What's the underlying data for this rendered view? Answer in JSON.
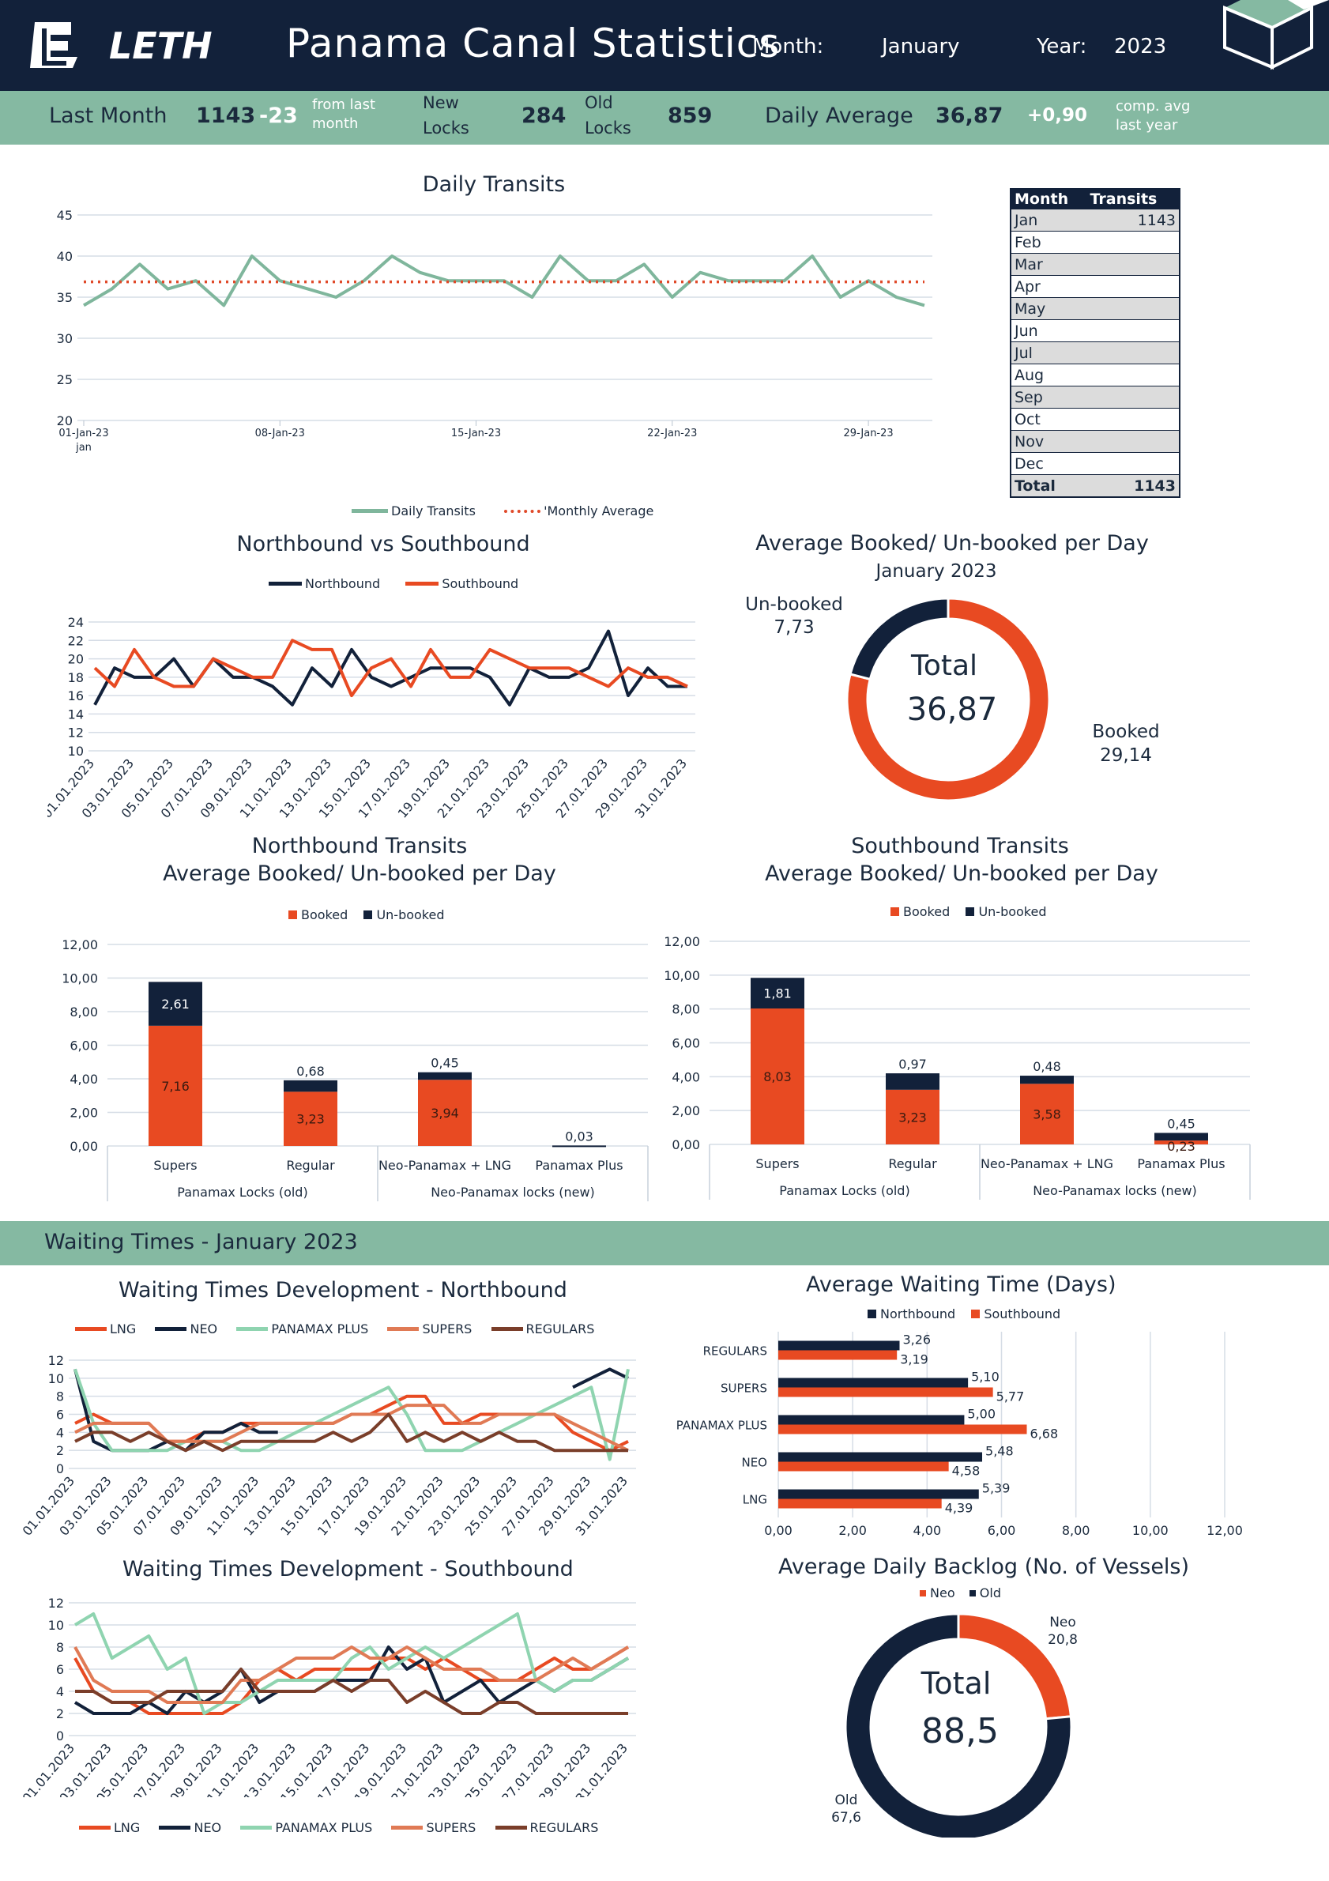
{
  "header": {
    "logo_text": "LETH",
    "title": "Panama Canal Statistics",
    "month_label": "Month:",
    "month_value": "January",
    "year_label": "Year:",
    "year_value": "2023"
  },
  "kpi": {
    "last_month_label": "Last Month",
    "last_month_value": "1143",
    "last_month_delta": "-23",
    "from_last_1": "from last",
    "from_last_2": "month",
    "new_locks_1": "New",
    "new_locks_2": "Locks",
    "new_locks_value": "284",
    "old_locks_1": "Old",
    "old_locks_2": "Locks",
    "old_locks_value": "859",
    "daily_avg_label": "Daily Average",
    "daily_avg_value": "36,87",
    "daily_avg_delta": "+0,90",
    "comp_1": "comp. avg",
    "comp_2": "last year"
  },
  "colors": {
    "navy": "#12213a",
    "orange": "#e84a22",
    "green": "#85b9a2",
    "mint": "#8fd4b0",
    "salmon": "#e07a55",
    "brown": "#7a3e2a",
    "teal_line": "#7fb69c",
    "avg_line": "#e04a2a"
  },
  "month_table": {
    "headers": [
      "Month",
      "Transits"
    ],
    "rows": [
      [
        "Jan",
        "1143"
      ],
      [
        "Feb",
        ""
      ],
      [
        "Mar",
        ""
      ],
      [
        "Apr",
        ""
      ],
      [
        "May",
        ""
      ],
      [
        "Jun",
        ""
      ],
      [
        "Jul",
        ""
      ],
      [
        "Aug",
        ""
      ],
      [
        "Sep",
        ""
      ],
      [
        "Oct",
        ""
      ],
      [
        "Nov",
        ""
      ],
      [
        "Dec",
        ""
      ]
    ],
    "total": [
      "Total",
      "1143"
    ]
  },
  "wait_section_title": "Waiting Times -   January 2023",
  "donut1": {
    "title": "Average Booked/ Un-booked per Day",
    "subtitle": "January 2023",
    "total_label": "Total",
    "total_value": "36,87",
    "unbooked_label": "Un-booked",
    "unbooked_value": "7,73",
    "booked_label": "Booked",
    "booked_value": "29,14"
  },
  "donut2": {
    "title": "Average Daily Backlog (No. of Vessels)",
    "total_label": "Total",
    "total_value": "88,5",
    "neo_label": "Neo",
    "neo_value": "20,8",
    "old_label": "Old",
    "old_value": "67,6",
    "legend_neo": "Neo",
    "legend_old": "Old"
  },
  "chart_data": [
    {
      "type": "line",
      "title": "Daily Transits",
      "x": [
        "01-Jan-23",
        "02-Jan-23",
        "03-Jan-23",
        "04-Jan-23",
        "05-Jan-23",
        "06-Jan-23",
        "07-Jan-23",
        "08-Jan-23",
        "09-Jan-23",
        "10-Jan-23",
        "11-Jan-23",
        "12-Jan-23",
        "13-Jan-23",
        "14-Jan-23",
        "15-Jan-23",
        "16-Jan-23",
        "17-Jan-23",
        "18-Jan-23",
        "19-Jan-23",
        "20-Jan-23",
        "21-Jan-23",
        "22-Jan-23",
        "23-Jan-23",
        "24-Jan-23",
        "25-Jan-23",
        "26-Jan-23",
        "27-Jan-23",
        "28-Jan-23",
        "29-Jan-23",
        "30-Jan-23",
        "31-Jan-23"
      ],
      "x_ticks": [
        "01-Jan-23",
        "08-Jan-23",
        "15-Jan-23",
        "22-Jan-23",
        "29-Jan-23"
      ],
      "x_sub": "jan",
      "series": [
        {
          "name": "Daily Transits",
          "values": [
            34,
            36,
            39,
            36,
            37,
            34,
            40,
            37,
            36,
            35,
            37,
            40,
            38,
            37,
            37,
            37,
            35,
            40,
            37,
            37,
            39,
            35,
            38,
            37,
            37,
            37,
            40,
            35,
            37,
            35,
            34
          ]
        },
        {
          "name": "'Monthly Average",
          "values": [
            36.87,
            36.87,
            36.87,
            36.87,
            36.87,
            36.87,
            36.87,
            36.87,
            36.87,
            36.87,
            36.87,
            36.87,
            36.87,
            36.87,
            36.87,
            36.87,
            36.87,
            36.87,
            36.87,
            36.87,
            36.87,
            36.87,
            36.87,
            36.87,
            36.87,
            36.87,
            36.87,
            36.87,
            36.87,
            36.87,
            36.87
          ]
        }
      ],
      "ylim": [
        20,
        45
      ],
      "yticks": [
        20,
        25,
        30,
        35,
        40,
        45
      ]
    },
    {
      "type": "line",
      "title": "Northbound vs Southbound",
      "x": [
        "01.01.2023",
        "02.01.2023",
        "03.01.2023",
        "04.01.2023",
        "05.01.2023",
        "06.01.2023",
        "07.01.2023",
        "08.01.2023",
        "09.01.2023",
        "10.01.2023",
        "11.01.2023",
        "12.01.2023",
        "13.01.2023",
        "14.01.2023",
        "15.01.2023",
        "16.01.2023",
        "17.01.2023",
        "18.01.2023",
        "19.01.2023",
        "20.01.2023",
        "21.01.2023",
        "22.01.2023",
        "23.01.2023",
        "24.01.2023",
        "25.01.2023",
        "26.01.2023",
        "27.01.2023",
        "28.01.2023",
        "29.01.2023",
        "30.01.2023",
        "31.01.2023"
      ],
      "x_ticks": [
        "01.01.2023",
        "03.01.2023",
        "05.01.2023",
        "07.01.2023",
        "09.01.2023",
        "11.01.2023",
        "13.01.2023",
        "15.01.2023",
        "17.01.2023",
        "19.01.2023",
        "21.01.2023",
        "23.01.2023",
        "25.01.2023",
        "27.01.2023",
        "29.01.2023",
        "31.01.2023"
      ],
      "series": [
        {
          "name": "Northbound",
          "values": [
            15,
            19,
            18,
            18,
            20,
            17,
            20,
            18,
            18,
            17,
            15,
            19,
            17,
            21,
            18,
            17,
            18,
            19,
            19,
            19,
            18,
            15,
            19,
            18,
            18,
            19,
            23,
            16,
            19,
            17,
            17
          ]
        },
        {
          "name": "Southbound",
          "values": [
            19,
            17,
            21,
            18,
            17,
            17,
            20,
            19,
            18,
            18,
            22,
            21,
            21,
            16,
            19,
            20,
            17,
            21,
            18,
            18,
            21,
            20,
            19,
            19,
            19,
            18,
            17,
            19,
            18,
            18,
            17
          ]
        }
      ],
      "ylim": [
        10,
        24
      ],
      "yticks": [
        10,
        12,
        14,
        16,
        18,
        20,
        22,
        24
      ]
    },
    {
      "type": "bar",
      "title": "Northbound Transits",
      "subtitle": "Average Booked/ Un-booked per Day",
      "stacked": true,
      "categories": [
        "Supers",
        "Regular",
        "Neo-Panamax + LNG",
        "Panamax Plus"
      ],
      "groups": [
        "Panamax Locks (old)",
        "Neo-Panamax locks (new)"
      ],
      "series": [
        {
          "name": "Booked",
          "values": [
            7.16,
            3.23,
            3.94,
            0
          ]
        },
        {
          "name": "Un-booked",
          "values": [
            2.61,
            0.68,
            0.45,
            0.03
          ]
        }
      ],
      "labels": {
        "booked": [
          "7,16",
          "3,23",
          "3,94",
          ""
        ],
        "unbooked": [
          "2,61",
          "0,68",
          "0,45",
          "0,03"
        ]
      },
      "ylim": [
        0,
        12
      ],
      "yticks": [
        "0,00",
        "2,00",
        "4,00",
        "6,00",
        "8,00",
        "10,00",
        "12,00"
      ]
    },
    {
      "type": "bar",
      "title": "Southbound Transits",
      "subtitle": "Average Booked/ Un-booked per Day",
      "stacked": true,
      "categories": [
        "Supers",
        "Regular",
        "Neo-Panamax + LNG",
        "Panamax Plus"
      ],
      "groups": [
        "Panamax Locks (old)",
        "Neo-Panamax locks (new)"
      ],
      "series": [
        {
          "name": "Booked",
          "values": [
            8.03,
            3.23,
            3.58,
            0.23
          ]
        },
        {
          "name": "Un-booked",
          "values": [
            1.81,
            0.97,
            0.48,
            0.45
          ]
        }
      ],
      "labels": {
        "booked": [
          "8,03",
          "3,23",
          "3,58",
          "0,23"
        ],
        "unbooked": [
          "1,81",
          "0,97",
          "0,48",
          "0,45"
        ]
      },
      "ylim": [
        0,
        12
      ],
      "yticks": [
        "0,00",
        "2,00",
        "4,00",
        "6,00",
        "8,00",
        "10,00",
        "12,00"
      ]
    },
    {
      "type": "pie",
      "title": "Average Booked/ Un-booked per Day",
      "categories": [
        "Booked",
        "Un-booked"
      ],
      "values": [
        29.14,
        7.73
      ]
    },
    {
      "type": "line",
      "title": "Waiting Times Development - Northbound",
      "x_ticks": [
        "01.01.2023",
        "03.01.2023",
        "05.01.2023",
        "07.01.2023",
        "09.01.2023",
        "11.01.2023",
        "13.01.2023",
        "15.01.2023",
        "17.01.2023",
        "19.01.2023",
        "21.01.2023",
        "23.01.2023",
        "25.01.2023",
        "27.01.2023",
        "29.01.2023",
        "31.01.2023"
      ],
      "series": [
        {
          "name": "LNG",
          "values": [
            5,
            6,
            5,
            5,
            5,
            3,
            3,
            4,
            4,
            5,
            5,
            5,
            5,
            5,
            5,
            6,
            6,
            7,
            8,
            8,
            5,
            5,
            6,
            6,
            6,
            6,
            6,
            4,
            3,
            2,
            3
          ]
        },
        {
          "name": "NEO",
          "values": [
            11,
            3,
            2,
            2,
            2,
            3,
            2,
            4,
            4,
            5,
            4,
            4,
            null,
            null,
            null,
            null,
            null,
            null,
            null,
            null,
            null,
            null,
            null,
            null,
            null,
            null,
            null,
            9,
            10,
            11,
            10
          ]
        },
        {
          "name": "PANAMAX PLUS",
          "values": [
            11,
            5,
            2,
            2,
            2,
            2,
            3,
            3,
            3,
            2,
            2,
            3,
            4,
            5,
            6,
            7,
            8,
            9,
            6,
            2,
            2,
            2,
            3,
            4,
            5,
            6,
            7,
            8,
            9,
            1,
            11
          ]
        },
        {
          "name": "SUPERS",
          "values": [
            4,
            5,
            5,
            5,
            5,
            3,
            3,
            3,
            3,
            4,
            5,
            5,
            5,
            5,
            5,
            6,
            6,
            6,
            7,
            7,
            7,
            5,
            5,
            6,
            6,
            6,
            6,
            5,
            4,
            3,
            2
          ]
        },
        {
          "name": "REGULARS",
          "values": [
            3,
            4,
            4,
            3,
            4,
            3,
            2,
            3,
            2,
            3,
            3,
            3,
            3,
            3,
            4,
            3,
            4,
            6,
            3,
            4,
            3,
            4,
            3,
            4,
            3,
            3,
            2,
            2,
            2,
            2,
            2
          ]
        }
      ],
      "ylim": [
        0,
        12
      ],
      "yticks": [
        0,
        2,
        4,
        6,
        8,
        10,
        12
      ]
    },
    {
      "type": "line",
      "title": "Waiting Times Development - Southbound",
      "x_ticks": [
        "01.01.2023",
        "03.01.2023",
        "05.01.2023",
        "07.01.2023",
        "09.01.2023",
        "11.01.2023",
        "13.01.2023",
        "15.01.2023",
        "17.01.2023",
        "19.01.2023",
        "21.01.2023",
        "23.01.2023",
        "25.01.2023",
        "27.01.2023",
        "29.01.2023",
        "31.01.2023"
      ],
      "series": [
        {
          "name": "LNG",
          "values": [
            7,
            4,
            3,
            3,
            2,
            2,
            2,
            2,
            2,
            3,
            5,
            6,
            5,
            6,
            6,
            6,
            6,
            7,
            7,
            6,
            7,
            6,
            5,
            5,
            5,
            6,
            7,
            6,
            6,
            7,
            8
          ]
        },
        {
          "name": "NEO",
          "values": [
            3,
            2,
            2,
            2,
            3,
            2,
            4,
            3,
            4,
            6,
            3,
            4,
            4,
            4,
            5,
            5,
            5,
            8,
            6,
            7,
            3,
            4,
            5,
            3,
            4,
            5,
            4,
            5,
            5,
            6,
            7
          ]
        },
        {
          "name": "PANAMAX PLUS",
          "values": [
            10,
            11,
            7,
            8,
            9,
            6,
            7,
            2,
            3,
            3,
            4,
            5,
            5,
            5,
            5,
            7,
            8,
            6,
            7,
            8,
            7,
            8,
            9,
            10,
            11,
            5,
            4,
            5,
            5,
            6,
            7
          ]
        },
        {
          "name": "SUPERS",
          "values": [
            8,
            5,
            4,
            4,
            4,
            3,
            3,
            3,
            3,
            5,
            5,
            6,
            7,
            7,
            7,
            8,
            7,
            7,
            8,
            7,
            6,
            6,
            6,
            5,
            5,
            5,
            6,
            7,
            6,
            7,
            8
          ]
        },
        {
          "name": "REGULARS",
          "values": [
            4,
            4,
            3,
            3,
            3,
            4,
            4,
            4,
            4,
            6,
            4,
            4,
            4,
            4,
            5,
            4,
            5,
            5,
            3,
            4,
            3,
            2,
            2,
            3,
            3,
            2,
            2,
            2,
            2,
            2,
            2
          ]
        }
      ],
      "ylim": [
        0,
        12
      ],
      "yticks": [
        0,
        2,
        4,
        6,
        8,
        10,
        12
      ]
    },
    {
      "type": "bar",
      "orientation": "horizontal",
      "title": "Average Waiting Time (Days)",
      "categories": [
        "REGULARS",
        "SUPERS",
        "PANAMAX PLUS",
        "NEO",
        "LNG"
      ],
      "series": [
        {
          "name": "Northbound",
          "values": [
            3.26,
            5.1,
            5.0,
            5.48,
            5.39
          ]
        },
        {
          "name": "Southbound",
          "values": [
            3.19,
            5.77,
            6.68,
            4.58,
            4.39
          ]
        }
      ],
      "labels": {
        "northbound": [
          "3,26",
          "5,10",
          "5,00",
          "5,48",
          "5,39"
        ],
        "southbound": [
          "3,19",
          "5,77",
          "6,68",
          "4,58",
          "4,39"
        ]
      },
      "xlim": [
        0,
        12
      ],
      "xticks": [
        "0,00",
        "2,00",
        "4,00",
        "6,00",
        "8,00",
        "10,00",
        "12,00"
      ]
    },
    {
      "type": "pie",
      "title": "Average Daily Backlog (No. of Vessels)",
      "categories": [
        "Neo",
        "Old"
      ],
      "values": [
        20.8,
        67.6
      ]
    }
  ]
}
